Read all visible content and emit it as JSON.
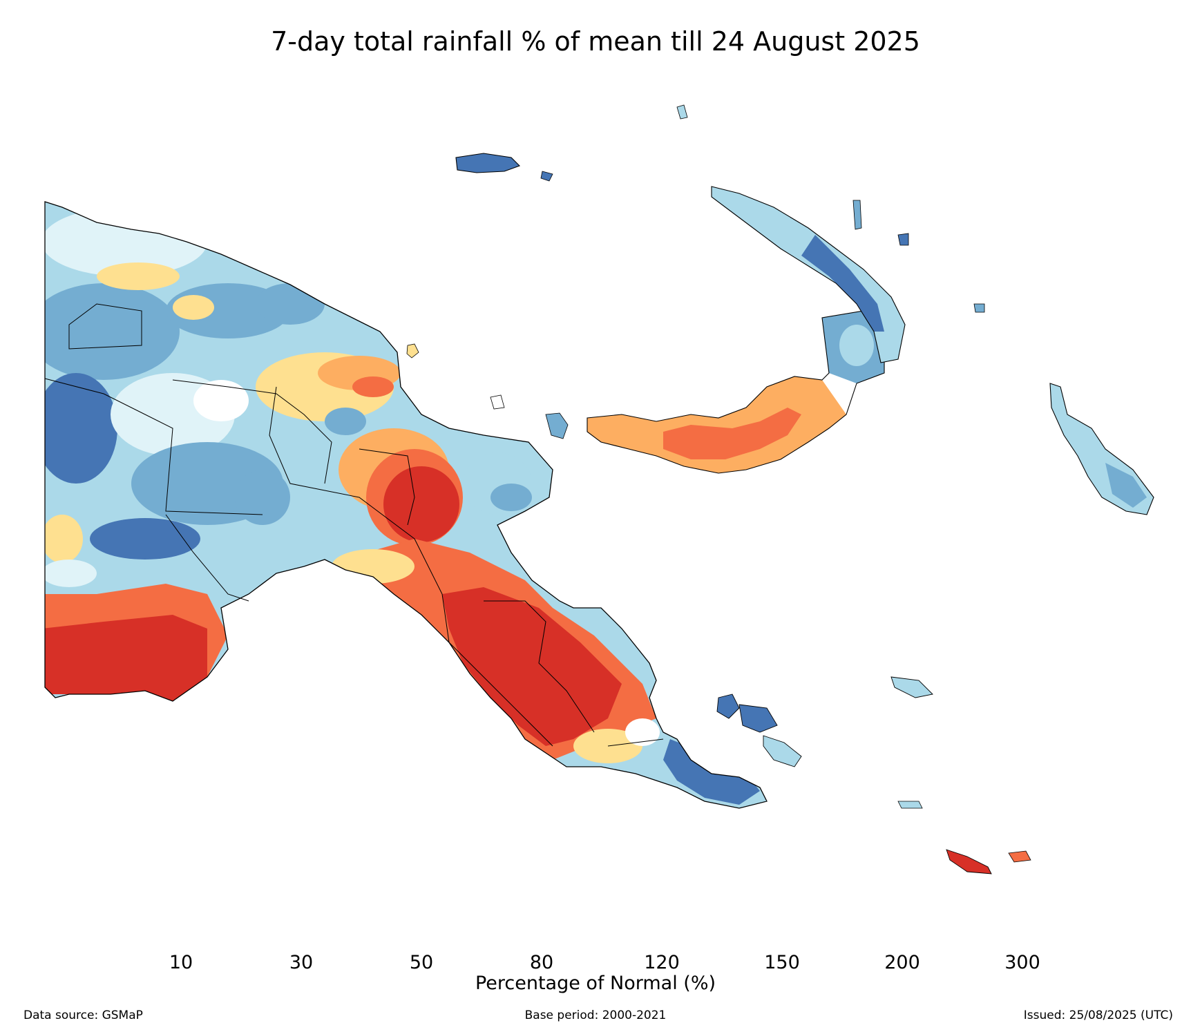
{
  "title": "7-day total rainfall % of mean till 24 August 2025",
  "colorbar": {
    "label": "Percentage of Normal (%)",
    "ticks": [
      "10",
      "30",
      "50",
      "80",
      "120",
      "150",
      "200",
      "300"
    ],
    "colors": {
      "below_10": "#d73027",
      "10_30": "#f46d43",
      "30_50": "#fdae61",
      "50_80": "#fee090",
      "80_120": "#ffffff",
      "120_150": "#e0f3f8",
      "150_200": "#abd9e9",
      "200_300": "#74add1",
      "above_300": "#4575b4"
    }
  },
  "footer": {
    "source": "Data source: GSMaP",
    "base_period": "Base period: 2000-2021",
    "issued": "Issued: 25/08/2025 (UTC)"
  }
}
